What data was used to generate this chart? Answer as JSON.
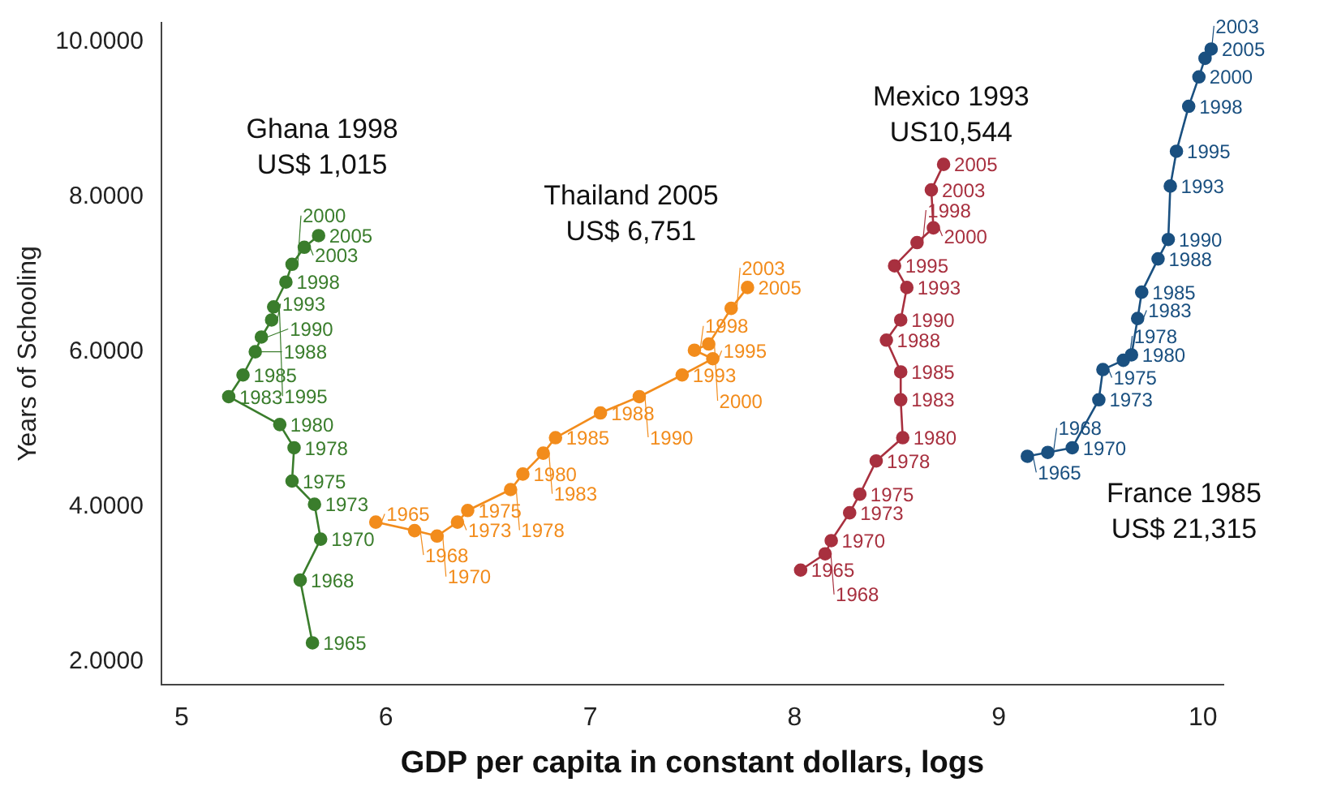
{
  "chart_data": {
    "type": "line",
    "xlabel": "GDP per capita in constant dollars, logs",
    "ylabel": "Years of Schooling",
    "xlim": [
      4.9,
      10.1
    ],
    "xticks": [
      5,
      6,
      7,
      8,
      9,
      10
    ],
    "ylim": [
      1.7,
      10.25
    ],
    "yticks": [
      {
        "value": 2,
        "label": "2.0000"
      },
      {
        "value": 4,
        "label": "4.0000"
      },
      {
        "value": 6,
        "label": "6.0000"
      },
      {
        "value": 8,
        "label": "8.0000"
      },
      {
        "value": 10,
        "label": "10.0000"
      }
    ],
    "grid": false,
    "legend": false,
    "marker": "circle",
    "line_style": "solid",
    "series": [
      {
        "color": "#3a7d2c",
        "x": [
          5.64,
          5.58,
          5.68,
          5.65,
          5.54,
          5.55,
          5.48,
          5.23,
          5.3,
          5.36,
          5.39,
          5.44,
          5.45,
          5.51,
          5.54,
          5.6,
          5.67
        ],
        "values": [
          2.24,
          3.05,
          3.58,
          4.03,
          4.33,
          4.76,
          5.06,
          5.42,
          5.7,
          6.0,
          6.19,
          6.41,
          6.58,
          6.9,
          7.13,
          7.35,
          7.5
        ]
      },
      {
        "color": "#f28c1c",
        "x": [
          5.95,
          6.14,
          6.25,
          6.35,
          6.4,
          6.61,
          6.67,
          6.77,
          6.83,
          7.05,
          7.24,
          7.45,
          7.6,
          7.51,
          7.58,
          7.69,
          7.77
        ],
        "values": [
          3.8,
          3.69,
          3.62,
          3.8,
          3.95,
          4.22,
          4.42,
          4.69,
          4.89,
          5.21,
          5.42,
          5.7,
          5.91,
          6.02,
          6.1,
          6.56,
          6.83
        ]
      },
      {
        "color": "#a8303f",
        "x": [
          8.03,
          8.15,
          8.18,
          8.27,
          8.32,
          8.4,
          8.53,
          8.52,
          8.52,
          8.45,
          8.52,
          8.55,
          8.49,
          8.6,
          8.68,
          8.67,
          8.73
        ],
        "values": [
          3.18,
          3.39,
          3.56,
          3.92,
          4.16,
          4.59,
          4.89,
          5.38,
          5.74,
          6.15,
          6.41,
          6.83,
          7.11,
          7.41,
          7.6,
          8.09,
          8.42
        ]
      },
      {
        "color": "#1a5080",
        "x": [
          9.14,
          9.24,
          9.36,
          9.49,
          9.51,
          9.61,
          9.65,
          9.68,
          9.7,
          9.78,
          9.83,
          9.84,
          9.87,
          9.93,
          9.98,
          10.01,
          10.04
        ],
        "values": [
          4.65,
          4.7,
          4.76,
          5.38,
          5.77,
          5.89,
          5.96,
          6.43,
          6.77,
          7.2,
          7.45,
          8.14,
          8.59,
          9.17,
          9.55,
          9.79,
          9.91
        ]
      }
    ],
    "annotations": [
      "Ghana 1998\nUS$ 1,015",
      "Thailand 2005\nUS$ 6,751",
      "Mexico 1993\nUS10,544",
      "France 1985\nUS$ 21,315",
      {
        "text": "1965",
        "x": 5.64,
        "y": 2.24
      },
      {
        "text": "1968",
        "x": 5.58,
        "y": 3.05
      },
      {
        "text": "1970",
        "x": 5.68,
        "y": 3.58
      },
      {
        "text": "1973",
        "x": 5.65,
        "y": 4.03
      },
      {
        "text": "1975",
        "x": 5.54,
        "y": 4.33
      },
      {
        "text": "1978",
        "x": 5.55,
        "y": 4.76
      },
      {
        "text": "1980",
        "x": 5.48,
        "y": 5.06
      },
      {
        "text": "1983",
        "x": 5.23,
        "y": 5.42
      },
      {
        "text": "1985",
        "x": 5.3,
        "y": 5.7
      },
      {
        "text": "1988",
        "x": 5.36,
        "y": 6.0
      },
      {
        "text": "1990",
        "x": 5.39,
        "y": 6.19
      },
      {
        "text": "1993",
        "x": 5.44,
        "y": 6.41
      },
      {
        "text": "1995",
        "x": 5.45,
        "y": 6.58
      },
      {
        "text": "1998",
        "x": 5.51,
        "y": 6.9
      },
      {
        "text": "2000",
        "x": 5.54,
        "y": 7.13
      },
      {
        "text": "2003",
        "x": 5.6,
        "y": 7.35
      },
      {
        "text": "2005",
        "x": 5.67,
        "y": 7.5
      },
      {
        "text": "1965",
        "x": 5.95,
        "y": 3.8
      },
      {
        "text": "1968",
        "x": 6.14,
        "y": 3.69
      },
      {
        "text": "1970",
        "x": 6.25,
        "y": 3.62
      },
      {
        "text": "1973",
        "x": 6.35,
        "y": 3.8
      },
      {
        "text": "1975",
        "x": 6.4,
        "y": 3.95
      },
      {
        "text": "1978",
        "x": 6.61,
        "y": 4.22
      },
      {
        "text": "1980",
        "x": 6.67,
        "y": 4.42
      },
      {
        "text": "1983",
        "x": 6.77,
        "y": 4.69
      },
      {
        "text": "1985",
        "x": 6.83,
        "y": 4.89
      },
      {
        "text": "1988",
        "x": 7.05,
        "y": 5.21
      },
      {
        "text": "1990",
        "x": 7.24,
        "y": 5.42
      },
      {
        "text": "1993",
        "x": 7.45,
        "y": 5.7
      },
      {
        "text": "1995",
        "x": 7.6,
        "y": 5.91
      },
      {
        "text": "1998",
        "x": 7.51,
        "y": 6.02
      },
      {
        "text": "2000",
        "x": 7.58,
        "y": 6.1
      },
      {
        "text": "2003",
        "x": 7.69,
        "y": 6.56
      },
      {
        "text": "2005",
        "x": 7.77,
        "y": 6.83
      },
      {
        "text": "1965",
        "x": 8.03,
        "y": 3.18
      },
      {
        "text": "1968",
        "x": 8.15,
        "y": 3.39
      },
      {
        "text": "1970",
        "x": 8.18,
        "y": 3.56
      },
      {
        "text": "1973",
        "x": 8.27,
        "y": 3.92
      },
      {
        "text": "1975",
        "x": 8.32,
        "y": 4.16
      },
      {
        "text": "1978",
        "x": 8.4,
        "y": 4.59
      },
      {
        "text": "1980",
        "x": 8.53,
        "y": 4.89
      },
      {
        "text": "1983",
        "x": 8.52,
        "y": 5.38
      },
      {
        "text": "1985",
        "x": 8.52,
        "y": 5.74
      },
      {
        "text": "1988",
        "x": 8.45,
        "y": 6.15
      },
      {
        "text": "1990",
        "x": 8.52,
        "y": 6.41
      },
      {
        "text": "1993",
        "x": 8.55,
        "y": 6.83
      },
      {
        "text": "1995",
        "x": 8.49,
        "y": 7.11
      },
      {
        "text": "1998",
        "x": 8.6,
        "y": 7.41
      },
      {
        "text": "2000",
        "x": 8.68,
        "y": 7.6
      },
      {
        "text": "2003",
        "x": 8.67,
        "y": 8.09
      },
      {
        "text": "2005",
        "x": 8.73,
        "y": 8.42
      },
      {
        "text": "1965",
        "x": 9.14,
        "y": 4.65
      },
      {
        "text": "1968",
        "x": 9.24,
        "y": 4.7
      },
      {
        "text": "1970",
        "x": 9.36,
        "y": 4.76
      },
      {
        "text": "1973",
        "x": 9.49,
        "y": 5.38
      },
      {
        "text": "1975",
        "x": 9.51,
        "y": 5.77
      },
      {
        "text": "1978",
        "x": 9.61,
        "y": 5.89
      },
      {
        "text": "1980",
        "x": 9.65,
        "y": 5.96
      },
      {
        "text": "1983",
        "x": 9.68,
        "y": 6.43
      },
      {
        "text": "1985",
        "x": 9.7,
        "y": 6.77
      },
      {
        "text": "1988",
        "x": 9.78,
        "y": 7.2
      },
      {
        "text": "1990",
        "x": 9.83,
        "y": 7.45
      },
      {
        "text": "1993",
        "x": 9.84,
        "y": 8.14
      },
      {
        "text": "1995",
        "x": 9.87,
        "y": 8.59
      },
      {
        "text": "1998",
        "x": 9.93,
        "y": 9.17
      },
      {
        "text": "2000",
        "x": 9.98,
        "y": 9.55
      },
      {
        "text": "2003",
        "x": 10.01,
        "y": 9.79
      },
      {
        "text": "2005",
        "x": 10.04,
        "y": 9.91
      }
    ]
  }
}
